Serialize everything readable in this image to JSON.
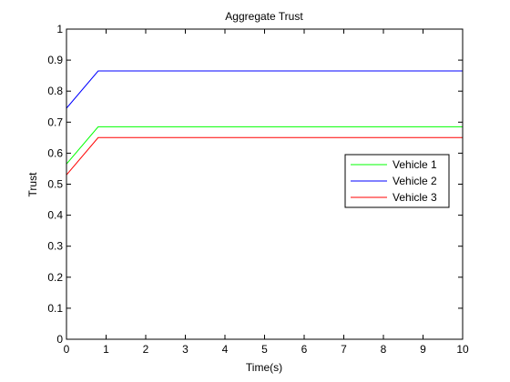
{
  "chart_data": {
    "type": "line",
    "title": "Aggregate Trust",
    "xlabel": "Time(s)",
    "ylabel": "Trust",
    "xlim": [
      0,
      10
    ],
    "ylim": [
      0,
      1
    ],
    "xticks": [
      "0",
      "1",
      "2",
      "3",
      "4",
      "5",
      "6",
      "7",
      "8",
      "9",
      "10"
    ],
    "yticks": [
      "0",
      "0.1",
      "0.2",
      "0.3",
      "0.4",
      "0.5",
      "0.6",
      "0.7",
      "0.8",
      "0.9",
      "1"
    ],
    "grid": false,
    "legend_position": "center-right",
    "series": [
      {
        "name": "Vehicle 1",
        "color": "#00ff00",
        "x": [
          0,
          0.8,
          10
        ],
        "y": [
          0.565,
          0.685,
          0.685
        ]
      },
      {
        "name": "Vehicle 2",
        "color": "#0000ff",
        "x": [
          0,
          0.8,
          10
        ],
        "y": [
          0.745,
          0.865,
          0.865
        ]
      },
      {
        "name": "Vehicle 3",
        "color": "#ff0000",
        "x": [
          0,
          0.8,
          10
        ],
        "y": [
          0.53,
          0.65,
          0.65
        ]
      }
    ]
  }
}
